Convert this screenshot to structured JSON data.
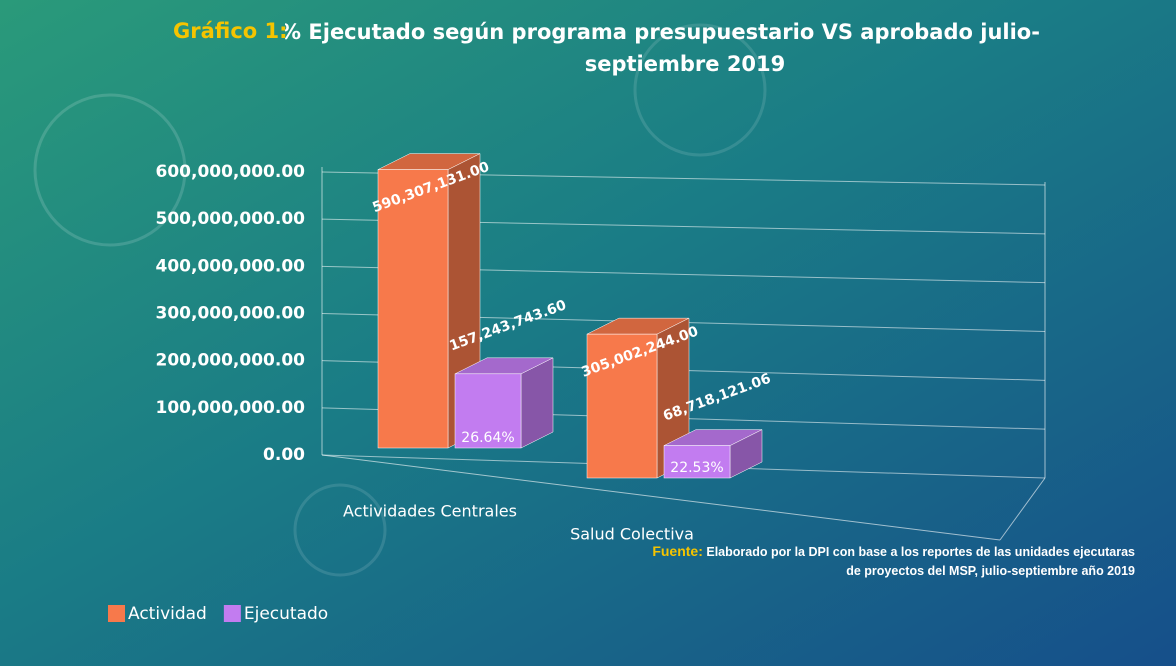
{
  "chart_data": {
    "type": "bar3d",
    "title_prefix": "Gráfico 1:",
    "title": "% Ejecutado según programa presupuestario VS aprobado julio-septiembre 2019",
    "categories": [
      "Actividades Centrales",
      "Salud Colectiva"
    ],
    "series": [
      {
        "name": "Actividad",
        "color": "#f7794b",
        "values": [
          590307131.0,
          305002244.0
        ],
        "value_labels": [
          "590,307,131.00",
          "305,002,244.00"
        ]
      },
      {
        "name": "Ejecutado",
        "color": "#c27cf0",
        "values": [
          157243743.6,
          68718121.06
        ],
        "value_labels": [
          "157,243,743.60",
          "68,718,121.06"
        ],
        "percentages": [
          {
            "value": 26.64,
            "label": "26.64%"
          },
          {
            "value": 22.53,
            "label": "22.53%"
          }
        ]
      }
    ],
    "ylim": [
      0,
      600000000
    ],
    "yticks": [
      {
        "value": 0,
        "label": "0.00"
      },
      {
        "value": 100000000,
        "label": "100,000,000.00"
      },
      {
        "value": 200000000,
        "label": "200,000,000.00"
      },
      {
        "value": 300000000,
        "label": "300,000,000.00"
      },
      {
        "value": 400000000,
        "label": "400,000,000.00"
      },
      {
        "value": 500000000,
        "label": "500,000,000.00"
      },
      {
        "value": 600000000,
        "label": "600,000,000.00"
      }
    ],
    "grid": true,
    "legend": "bottom-left",
    "source_label": "Fuente:",
    "source": "Elaborado por  la DPI con base a los reportes de las unidades ejecutaras de proyectos del MSP, julio-septiembre año 2019"
  }
}
